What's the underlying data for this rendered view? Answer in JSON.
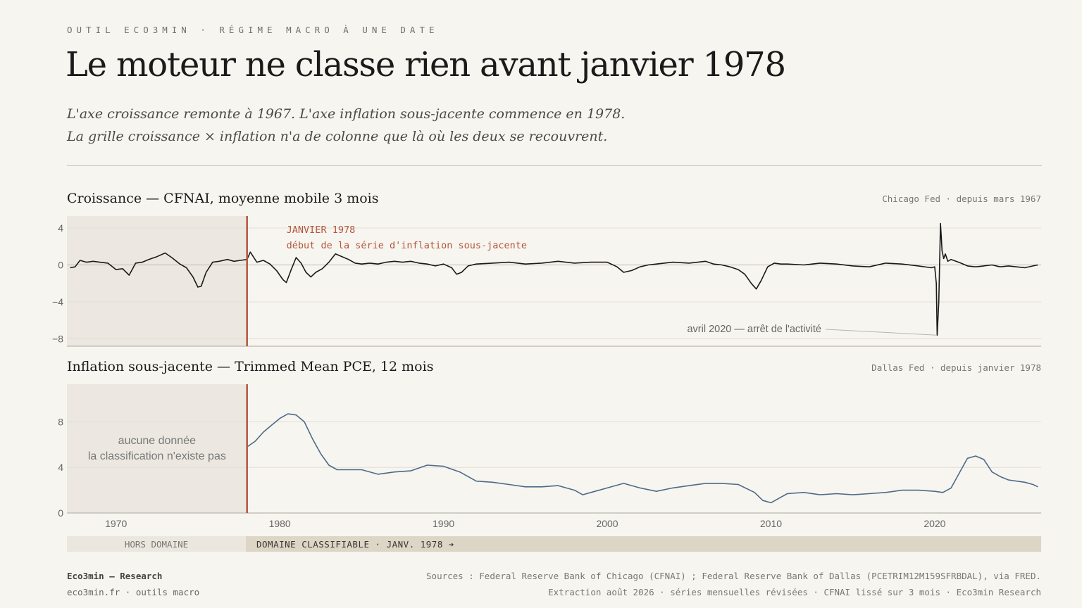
{
  "header": {
    "kicker": "OUTIL ECO3MIN · RÉGIME MACRO À UNE DATE",
    "title": "Le moteur ne classe rien avant janvier 1978",
    "dek_line1": "L'axe croissance remonte à 1967. L'axe inflation sous-jacente commence en 1978.",
    "dek_line2": "La grille croissance × inflation n'a de colonne que là où les deux se recouvrent."
  },
  "panels": {
    "growth": {
      "title": "Croissance — CFNAI, moyenne mobile 3 mois",
      "source": "Chicago Fed · depuis mars 1967"
    },
    "inflation": {
      "title": "Inflation sous-jacente — Trimmed Mean PCE, 12 mois",
      "source": "Dallas Fed · depuis janvier 1978"
    }
  },
  "domain": {
    "out_label": "HORS DOMAINE",
    "in_label": "DOMAINE CLASSIFIABLE · JANV. 1978 ➔"
  },
  "footer": {
    "brand": "Eco3min — Research",
    "site": "eco3min.fr · outils macro",
    "sources": "Sources : Federal Reserve Bank of Chicago (CFNAI) ; Federal Reserve Bank of Dallas (PCETRIM12M159SFRBDAL), via FRED.",
    "extraction": "Extraction août 2026 · séries mensuelles révisées · CFNAI lissé sur 3 mois · Eco3min Research"
  },
  "colors": {
    "accent": "#b5563c",
    "growth_line": "#1a1a1a",
    "inflation_line": "#4d6a8a",
    "shade": "#ece8e1"
  },
  "chart_data": [
    {
      "type": "line",
      "title": "Croissance — CFNAI, moyenne mobile 3 mois",
      "xlim": [
        1967,
        2026.5
      ],
      "ylim": [
        -8.8,
        5.3
      ],
      "yticks": [
        4,
        0,
        -4,
        -8
      ],
      "ytick_labels": [
        "4",
        "0",
        "−4",
        "−8"
      ],
      "series": [
        {
          "x": [
            1967.2,
            1967.5,
            1967.8,
            1968.2,
            1968.6,
            1969.0,
            1969.5,
            1970.0,
            1970.4,
            1970.8,
            1971.2,
            1971.6,
            1972.0,
            1972.5,
            1973.0,
            1973.4,
            1973.9,
            1974.3,
            1974.7,
            1975.0,
            1975.2,
            1975.5,
            1975.9,
            1976.3,
            1976.8,
            1977.2,
            1977.6,
            1978.0,
            1978.2,
            1978.6,
            1979.0,
            1979.4,
            1979.8,
            1980.2,
            1980.4,
            1980.7,
            1981.0,
            1981.3,
            1981.6,
            1981.9,
            1982.2,
            1982.6,
            1983.0,
            1983.4,
            1983.8,
            1984.2,
            1984.6,
            1985.0,
            1985.5,
            1986.0,
            1986.5,
            1987.0,
            1987.5,
            1988.0,
            1988.5,
            1989.0,
            1989.5,
            1990.0,
            1990.5,
            1990.8,
            1991.1,
            1991.5,
            1992.0,
            1993.0,
            1994.0,
            1995.0,
            1996.0,
            1997.0,
            1998.0,
            1999.0,
            2000.0,
            2000.6,
            2001.0,
            2001.5,
            2002.0,
            2002.5,
            2003.0,
            2004.0,
            2005.0,
            2006.0,
            2006.5,
            2007.0,
            2007.5,
            2008.0,
            2008.4,
            2008.8,
            2009.1,
            2009.4,
            2009.8,
            2010.2,
            2010.6,
            2011.0,
            2012.0,
            2013.0,
            2014.0,
            2015.0,
            2016.0,
            2017.0,
            2018.0,
            2019.0,
            2019.8,
            2020.0,
            2020.1,
            2020.15,
            2020.25,
            2020.35,
            2020.45,
            2020.55,
            2020.65,
            2020.8,
            2021.0,
            2021.3,
            2021.6,
            2022.0,
            2022.5,
            2023.0,
            2023.5,
            2024.0,
            2024.5,
            2025.0,
            2025.5,
            2026.0,
            2026.3
          ],
          "values": [
            -0.3,
            -0.2,
            0.5,
            0.3,
            0.4,
            0.3,
            0.2,
            -0.5,
            -0.4,
            -1.1,
            0.2,
            0.3,
            0.6,
            0.9,
            1.3,
            0.8,
            0.1,
            -0.3,
            -1.3,
            -2.4,
            -2.3,
            -0.8,
            0.3,
            0.4,
            0.6,
            0.4,
            0.5,
            0.6,
            1.4,
            0.3,
            0.5,
            0.1,
            -0.6,
            -1.6,
            -1.9,
            -0.5,
            0.8,
            0.2,
            -0.8,
            -1.3,
            -0.8,
            -0.4,
            0.3,
            1.2,
            0.9,
            0.6,
            0.2,
            0.1,
            0.2,
            0.1,
            0.3,
            0.4,
            0.3,
            0.4,
            0.2,
            0.1,
            -0.1,
            0.1,
            -0.3,
            -1.0,
            -0.8,
            -0.1,
            0.1,
            0.2,
            0.3,
            0.1,
            0.2,
            0.4,
            0.2,
            0.3,
            0.3,
            -0.2,
            -0.8,
            -0.6,
            -0.2,
            0.0,
            0.1,
            0.3,
            0.2,
            0.4,
            0.1,
            0.0,
            -0.2,
            -0.5,
            -1.0,
            -2.0,
            -2.6,
            -1.7,
            -0.2,
            0.2,
            0.1,
            0.1,
            0.0,
            0.2,
            0.1,
            -0.1,
            -0.2,
            0.2,
            0.1,
            -0.1,
            -0.3,
            -0.2,
            -2.0,
            -7.6,
            -4.0,
            4.5,
            1.5,
            0.7,
            1.2,
            0.4,
            0.6,
            0.4,
            0.2,
            -0.1,
            -0.2,
            -0.1,
            0.0,
            -0.2,
            -0.1,
            -0.2,
            -0.3,
            -0.1,
            0.0
          ]
        }
      ],
      "annotations": [
        {
          "x": 1978.0,
          "title": "JANVIER 1978",
          "text": "début de la série d'inflation sous-jacente"
        },
        {
          "x": 2020.3,
          "y": -7.6,
          "text": "avril 2020 — arrêt de l'activité"
        }
      ],
      "shaded_region": {
        "x": [
          1967,
          1978.0
        ]
      }
    },
    {
      "type": "line",
      "title": "Inflation sous-jacente — Trimmed Mean PCE, 12 mois",
      "xlim": [
        1967,
        2026.5
      ],
      "ylim": [
        0,
        11.3
      ],
      "yticks": [
        0,
        4,
        8
      ],
      "ytick_labels": [
        "0",
        "4",
        "8"
      ],
      "xticks": [
        1970,
        1980,
        1990,
        2000,
        2010,
        2020
      ],
      "xtick_labels": [
        "1970",
        "1980",
        "1990",
        "2000",
        "2010",
        "2020"
      ],
      "series": [
        {
          "x": [
            1978.0,
            1978.5,
            1979.0,
            1979.5,
            1980.0,
            1980.5,
            1981.0,
            1981.5,
            1982.0,
            1982.5,
            1983.0,
            1983.5,
            1984.0,
            1985.0,
            1986.0,
            1987.0,
            1988.0,
            1989.0,
            1990.0,
            1991.0,
            1992.0,
            1993.0,
            1994.0,
            1995.0,
            1996.0,
            1997.0,
            1998.0,
            1998.5,
            1999.0,
            2000.0,
            2001.0,
            2002.0,
            2003.0,
            2004.0,
            2005.0,
            2006.0,
            2007.0,
            2008.0,
            2009.0,
            2009.5,
            2010.0,
            2010.5,
            2011.0,
            2012.0,
            2013.0,
            2014.0,
            2015.0,
            2016.0,
            2017.0,
            2018.0,
            2019.0,
            2020.0,
            2020.5,
            2021.0,
            2021.5,
            2022.0,
            2022.5,
            2023.0,
            2023.5,
            2024.0,
            2024.5,
            2025.0,
            2025.5,
            2026.0,
            2026.3
          ],
          "values": [
            5.8,
            6.3,
            7.1,
            7.7,
            8.3,
            8.7,
            8.6,
            8.0,
            6.5,
            5.2,
            4.2,
            3.8,
            3.8,
            3.8,
            3.4,
            3.6,
            3.7,
            4.2,
            4.1,
            3.6,
            2.8,
            2.7,
            2.5,
            2.3,
            2.3,
            2.4,
            2.0,
            1.6,
            1.8,
            2.2,
            2.6,
            2.2,
            1.9,
            2.2,
            2.4,
            2.6,
            2.6,
            2.5,
            1.8,
            1.1,
            0.9,
            1.3,
            1.7,
            1.8,
            1.6,
            1.7,
            1.6,
            1.7,
            1.8,
            2.0,
            2.0,
            1.9,
            1.8,
            2.2,
            3.5,
            4.8,
            5.0,
            4.7,
            3.6,
            3.2,
            2.9,
            2.8,
            2.7,
            2.5,
            2.3
          ]
        }
      ],
      "annotations": [
        {
          "text_line1": "aucune donnée",
          "text_line2": "la classification n'existe pas"
        }
      ],
      "shaded_region": {
        "x": [
          1967,
          1978.0
        ]
      }
    }
  ]
}
